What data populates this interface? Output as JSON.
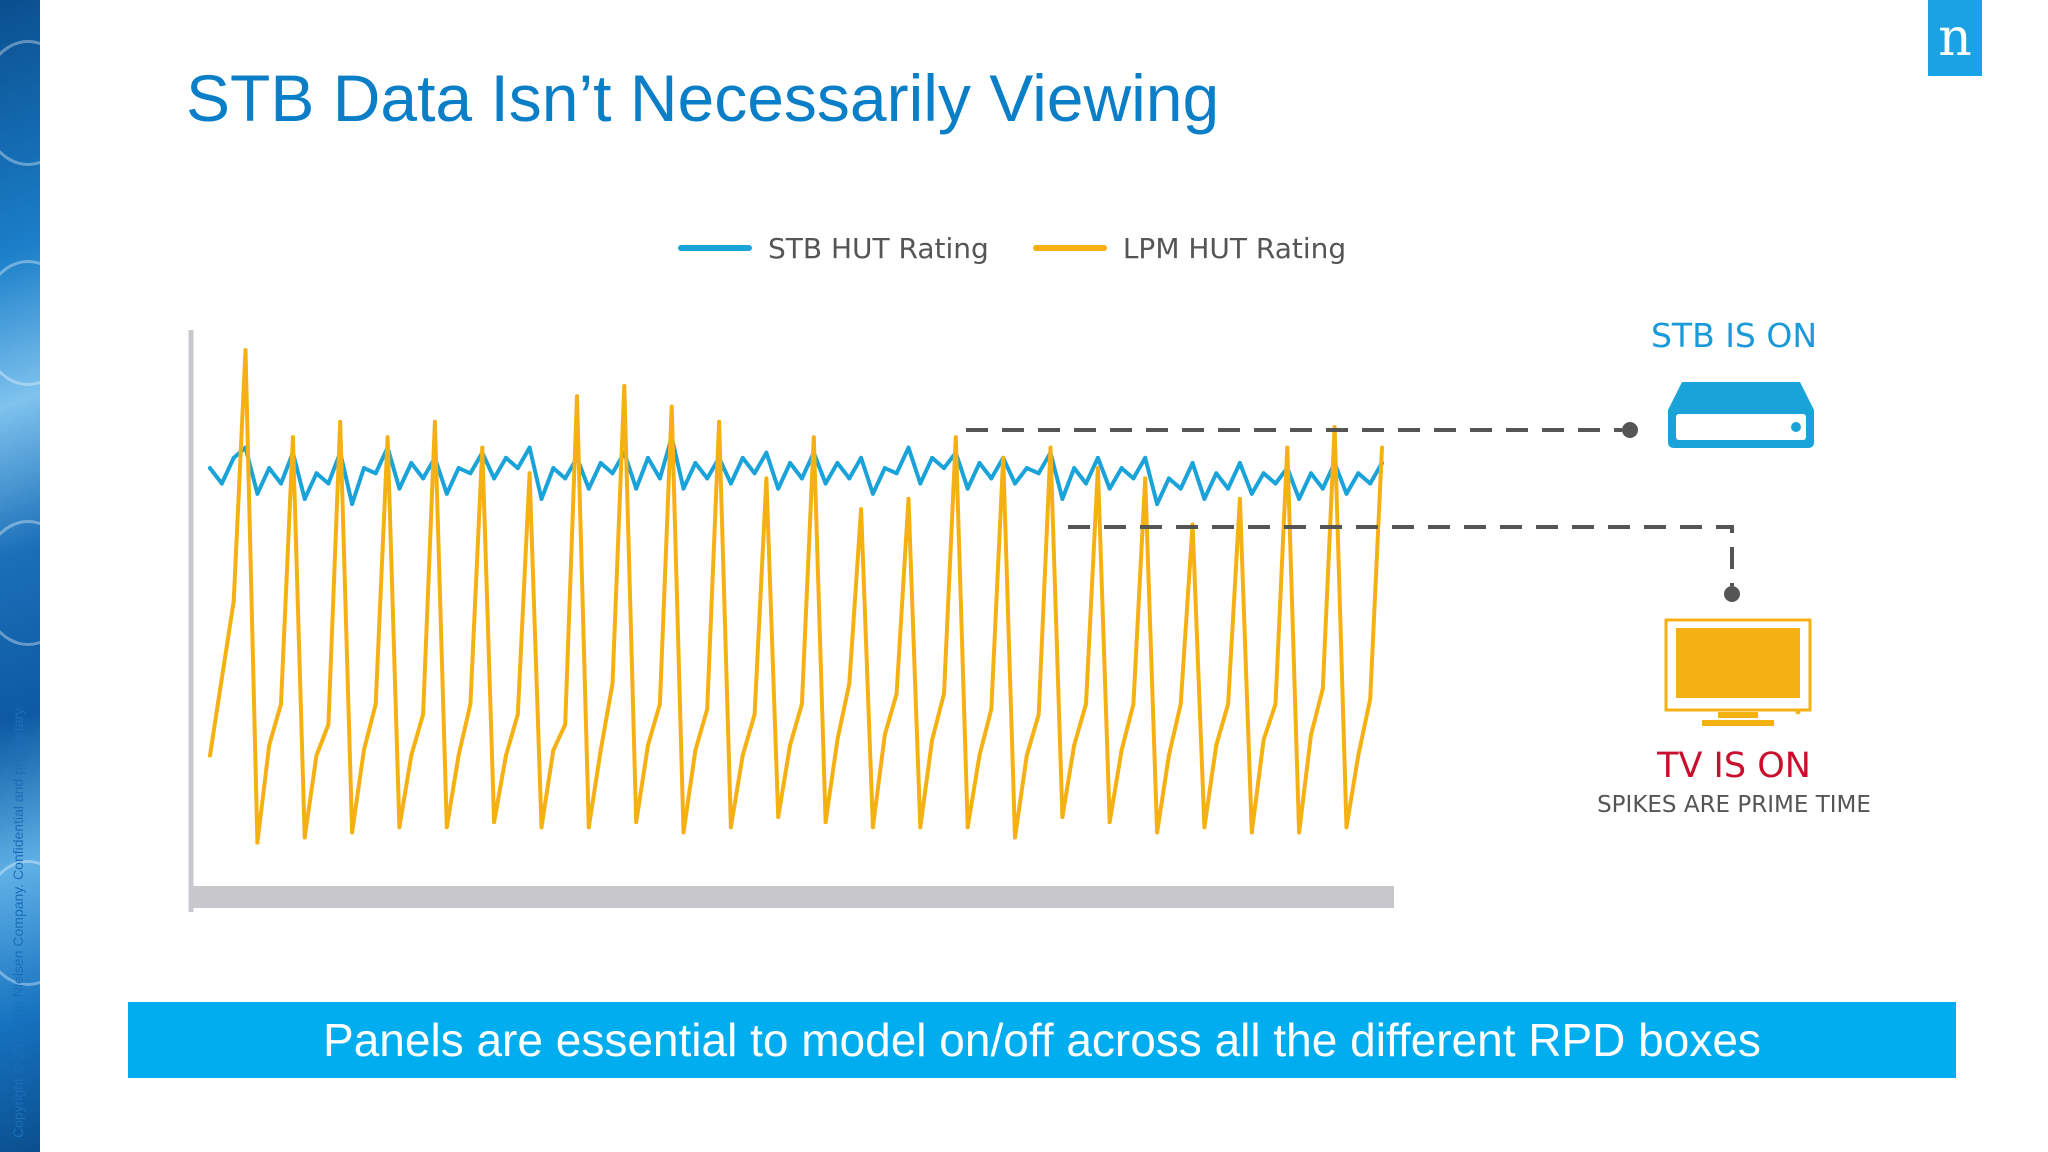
{
  "slide": {
    "title": "STB Data Isn’t Necessarily Viewing",
    "logo_text": "n",
    "copyright": "Copyright © 2017 The Nielsen Company. Confidential and proprietary.",
    "banner": "Panels are essential to model on/off across all the different RPD boxes"
  },
  "colors": {
    "title": "#0a7ec7",
    "stb": "#1aa3d9",
    "lpm": "#f5b114",
    "tv_label": "#c8102e",
    "banner": "#00aeef",
    "axis": "#c8c8cc",
    "dash": "#555555"
  },
  "callouts": {
    "stb_on": {
      "label": "STB IS ON",
      "icon": "set-top-box-icon"
    },
    "tv_on": {
      "label": "TV IS ON",
      "sublabel": "SPIKES ARE PRIME TIME",
      "icon": "tv-icon"
    }
  },
  "chart_data": {
    "type": "line",
    "title": "",
    "xlabel": "",
    "ylabel": "",
    "x_unit": "day",
    "points_per_day": 4,
    "days": 25,
    "ylim": [
      0,
      100
    ],
    "grid": false,
    "legend_position": "top-center",
    "series": [
      {
        "name": "STB HUT Rating",
        "color": "#1aa3d9",
        "values": [
          76,
          73,
          78,
          80,
          71,
          76,
          73,
          79,
          70,
          75,
          73,
          79,
          69,
          76,
          75,
          80,
          72,
          77,
          74,
          78,
          71,
          76,
          75,
          79,
          74,
          78,
          76,
          80,
          70,
          76,
          74,
          78,
          72,
          77,
          75,
          79,
          72,
          78,
          74,
          82,
          72,
          77,
          74,
          78,
          73,
          78,
          75,
          79,
          72,
          77,
          74,
          79,
          73,
          77,
          74,
          78,
          71,
          76,
          75,
          80,
          73,
          78,
          76,
          79,
          72,
          77,
          74,
          78,
          73,
          76,
          75,
          79,
          70,
          76,
          73,
          78,
          72,
          76,
          74,
          78,
          69,
          74,
          72,
          77,
          70,
          75,
          72,
          77,
          71,
          75,
          73,
          76,
          70,
          75,
          72,
          77,
          71,
          75,
          73,
          77
        ]
      },
      {
        "name": "LPM HUT Rating",
        "color": "#f5b114",
        "values": [
          20,
          35,
          50,
          99,
          3,
          22,
          30,
          82,
          4,
          20,
          26,
          85,
          5,
          21,
          30,
          82,
          6,
          20,
          28,
          85,
          6,
          20,
          30,
          80,
          7,
          20,
          28,
          75,
          6,
          21,
          26,
          90,
          6,
          21,
          34,
          92,
          7,
          22,
          30,
          88,
          5,
          21,
          29,
          85,
          6,
          20,
          28,
          74,
          8,
          22,
          30,
          82,
          7,
          23,
          34,
          68,
          6,
          24,
          32,
          70,
          6,
          23,
          32,
          82,
          6,
          20,
          29,
          78,
          4,
          20,
          28,
          80,
          8,
          22,
          30,
          76,
          7,
          21,
          30,
          74,
          5,
          20,
          30,
          65,
          6,
          22,
          30,
          70,
          5,
          23,
          30,
          80,
          5,
          24,
          33,
          84,
          6,
          20,
          31,
          80
        ]
      }
    ]
  }
}
